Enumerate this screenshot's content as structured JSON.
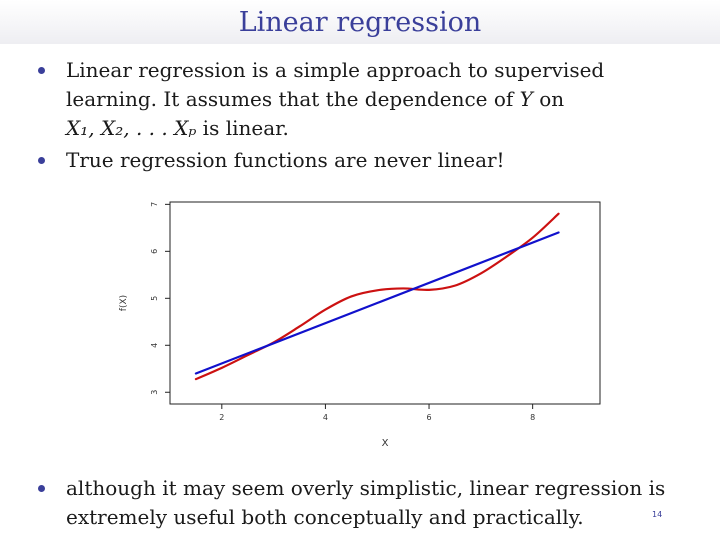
{
  "title": "Linear regression",
  "bullets": {
    "b1": {
      "line1": "Linear regression is a simple approach to supervised",
      "line2_a": "learning. It assumes that the dependence of ",
      "line2_var": "Y",
      "line2_b": " on",
      "line3_var": "X₁, X₂, . . . Xₚ",
      "line3_b": " is linear."
    },
    "b2": "True regression functions are never linear!",
    "b3_line1": "although it may seem overly simplistic, linear regression is",
    "b3_line2": "extremely useful both conceptually and practically."
  },
  "page_number": "14",
  "chart_data": {
    "type": "line",
    "xlabel": "X",
    "ylabel": "f(X)",
    "xlim": [
      1.0,
      9.3
    ],
    "ylim": [
      2.75,
      7.05
    ],
    "xticks": [
      2,
      4,
      6,
      8
    ],
    "yticks": [
      3,
      4,
      5,
      6,
      7
    ],
    "grid": false,
    "series": [
      {
        "color": "#cc1111",
        "x": [
          1.5,
          2.0,
          2.5,
          3.0,
          3.5,
          4.0,
          4.5,
          5.0,
          5.5,
          6.0,
          6.5,
          7.0,
          7.5,
          8.0,
          8.5
        ],
        "y": [
          3.28,
          3.52,
          3.79,
          4.06,
          4.4,
          4.76,
          5.04,
          5.17,
          5.21,
          5.18,
          5.27,
          5.53,
          5.89,
          6.29,
          6.8
        ]
      },
      {
        "color": "#1111cc",
        "x": [
          1.5,
          8.5
        ],
        "y": [
          3.4,
          6.4
        ]
      }
    ]
  }
}
